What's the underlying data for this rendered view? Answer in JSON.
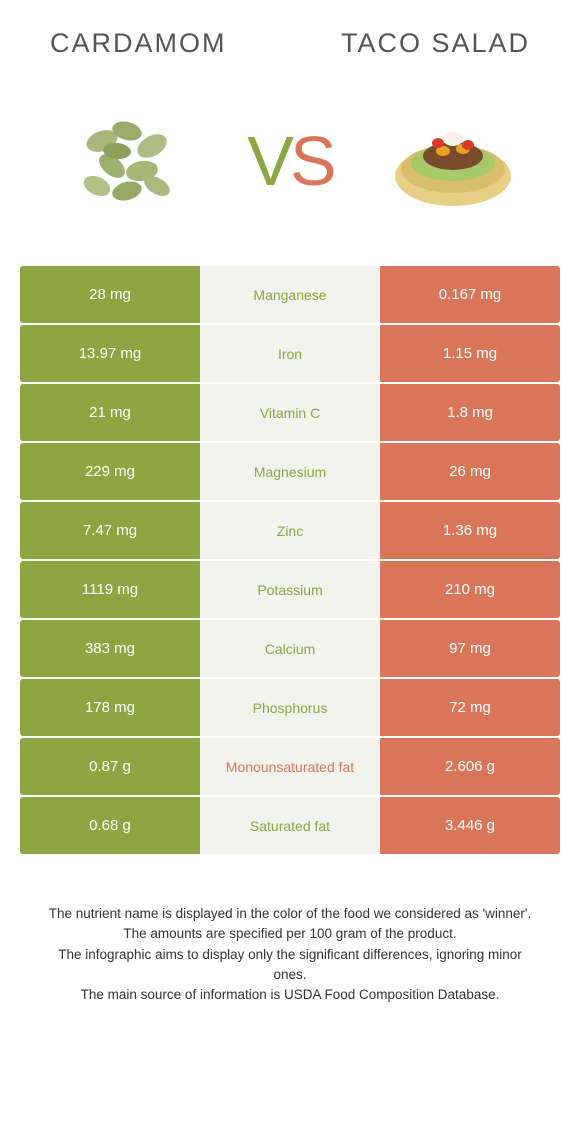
{
  "header": {
    "left_title": "Cardamom",
    "right_title": "Taco salad"
  },
  "vs": {
    "v": "V",
    "s": "S"
  },
  "colors": {
    "left": "#8da641",
    "right": "#d9765a",
    "mid_bg": "#f2f2ee"
  },
  "nutrients": [
    {
      "name": "Manganese",
      "left": "28 mg",
      "right": "0.167 mg",
      "winner": "left"
    },
    {
      "name": "Iron",
      "left": "13.97 mg",
      "right": "1.15 mg",
      "winner": "left"
    },
    {
      "name": "Vitamin C",
      "left": "21 mg",
      "right": "1.8 mg",
      "winner": "left"
    },
    {
      "name": "Magnesium",
      "left": "229 mg",
      "right": "26 mg",
      "winner": "left"
    },
    {
      "name": "Zinc",
      "left": "7.47 mg",
      "right": "1.36 mg",
      "winner": "left"
    },
    {
      "name": "Potassium",
      "left": "1119 mg",
      "right": "210 mg",
      "winner": "left"
    },
    {
      "name": "Calcium",
      "left": "383 mg",
      "right": "97 mg",
      "winner": "left"
    },
    {
      "name": "Phosphorus",
      "left": "178 mg",
      "right": "72 mg",
      "winner": "left"
    },
    {
      "name": "Monounsaturated fat",
      "left": "0.87 g",
      "right": "2.606 g",
      "winner": "right"
    },
    {
      "name": "Saturated fat",
      "left": "0.68 g",
      "right": "3.446 g",
      "winner": "left"
    }
  ],
  "footer": {
    "line1": "The nutrient name is displayed in the color of the food we considered as 'winner'.",
    "line2": "The amounts are specified per 100 gram of the product.",
    "line3": "The infographic aims to display only the significant differences, ignoring minor ones.",
    "line4": "The main source of information is USDA Food Composition Database."
  }
}
